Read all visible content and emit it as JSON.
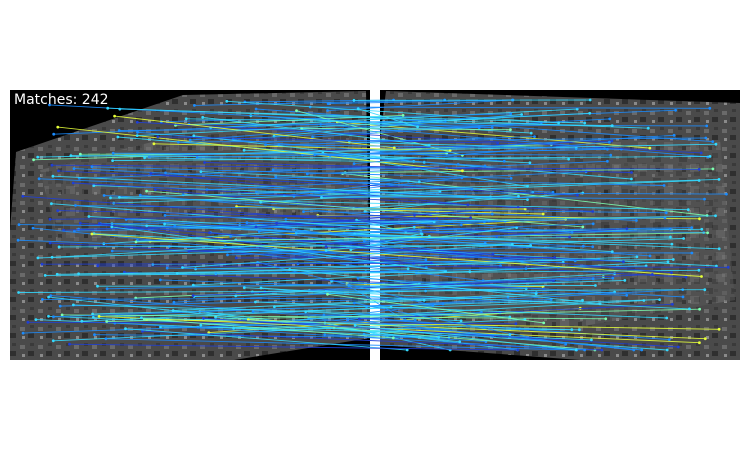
{
  "figure": {
    "match_label": "Matches: 242"
  },
  "chart_data": {
    "type": "scatter",
    "match_count": 242,
    "colormap": [
      "#1f3fd8",
      "#1a8cff",
      "#33d9ff",
      "#7dffb0",
      "#e6ff3a"
    ],
    "background": "#000000",
    "panel_gap_color": "#ffffff"
  }
}
